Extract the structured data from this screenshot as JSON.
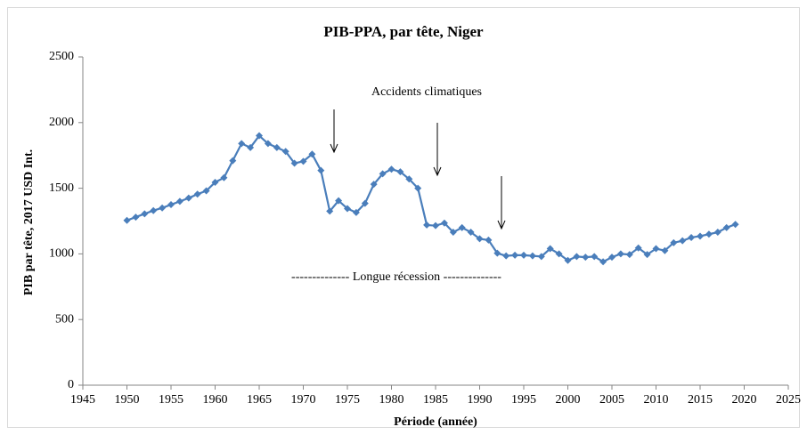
{
  "chart_data": {
    "type": "line",
    "title": "PIB-PPA, par tête, Niger",
    "x_label": "Période (année)",
    "y_label": "PIB par tête, 2017 USD Int.",
    "annotations": [
      "Accidents climatiques",
      "-------------- Longue récession --------------"
    ],
    "x": [
      1950,
      1951,
      1952,
      1953,
      1954,
      1955,
      1956,
      1957,
      1958,
      1959,
      1960,
      1961,
      1962,
      1963,
      1964,
      1965,
      1966,
      1967,
      1968,
      1969,
      1970,
      1971,
      1972,
      1973,
      1974,
      1975,
      1976,
      1977,
      1978,
      1979,
      1980,
      1981,
      1982,
      1983,
      1984,
      1985,
      1986,
      1987,
      1988,
      1989,
      1990,
      1991,
      1992,
      1993,
      1994,
      1995,
      1996,
      1997,
      1998,
      1999,
      2000,
      2001,
      2002,
      2003,
      2004,
      2005,
      2006,
      2007,
      2008,
      2009,
      2010,
      2011,
      2012,
      2013,
      2014,
      2015,
      2016,
      2017,
      2018,
      2019
    ],
    "series": [
      {
        "color": "#4a7ebb",
        "values": [
          1255,
          1280,
          1305,
          1330,
          1350,
          1375,
          1400,
          1425,
          1455,
          1480,
          1545,
          1580,
          1710,
          1840,
          1810,
          1900,
          1840,
          1810,
          1780,
          1690,
          1705,
          1760,
          1635,
          1325,
          1405,
          1345,
          1315,
          1385,
          1530,
          1610,
          1645,
          1625,
          1570,
          1500,
          1220,
          1215,
          1235,
          1165,
          1200,
          1165,
          1115,
          1105,
          1005,
          985,
          990,
          990,
          985,
          980,
          1040,
          1000,
          950,
          980,
          975,
          980,
          940,
          975,
          1000,
          995,
          1045,
          995,
          1040,
          1025,
          1085,
          1100,
          1125,
          1135,
          1150,
          1165,
          1200,
          1225
        ]
      }
    ],
    "xlim": [
      1945,
      2025
    ],
    "xticks": [
      1945,
      1950,
      1955,
      1960,
      1965,
      1970,
      1975,
      1980,
      1985,
      1990,
      1995,
      2000,
      2005,
      2010,
      2015,
      2020,
      2025
    ],
    "ylim": [
      0,
      2500
    ],
    "yticks": [
      0,
      500,
      1000,
      1500,
      2000,
      2500
    ],
    "grid": false
  }
}
